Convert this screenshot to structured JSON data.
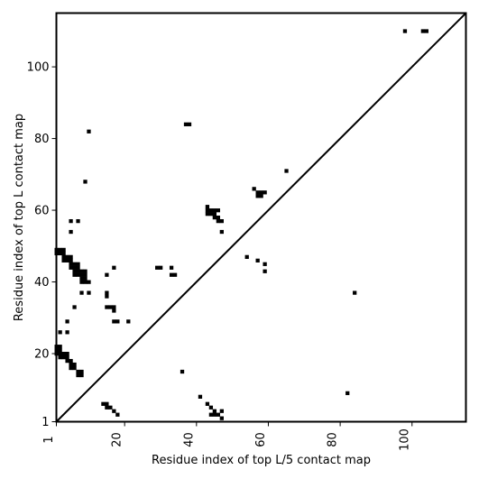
{
  "chart_data": {
    "type": "heatmap",
    "xlabel": "Residue index of top L/5 contact map",
    "ylabel": "Residue index of top L contact map",
    "xlim": [
      1,
      115
    ],
    "ylim": [
      1,
      115
    ],
    "xticks": [
      1,
      20,
      40,
      60,
      80,
      100
    ],
    "yticks": [
      1,
      20,
      40,
      60,
      80,
      100
    ],
    "diagonal": true,
    "colors": {
      "cell": "#000000",
      "background": "#ffffff",
      "frame": "#000000"
    },
    "cells_below_diagonal": [
      [
        1,
        20
      ],
      [
        1,
        21
      ],
      [
        1,
        22
      ],
      [
        1,
        48
      ],
      [
        1,
        49
      ],
      [
        2,
        19
      ],
      [
        2,
        20
      ],
      [
        2,
        21
      ],
      [
        2,
        22
      ],
      [
        2,
        26
      ],
      [
        2,
        48
      ],
      [
        2,
        49
      ],
      [
        3,
        19
      ],
      [
        3,
        20
      ],
      [
        3,
        46
      ],
      [
        3,
        47
      ],
      [
        3,
        48
      ],
      [
        3,
        49
      ],
      [
        4,
        18
      ],
      [
        4,
        19
      ],
      [
        4,
        20
      ],
      [
        4,
        26
      ],
      [
        4,
        29
      ],
      [
        4,
        46
      ],
      [
        4,
        47
      ],
      [
        5,
        16
      ],
      [
        5,
        17
      ],
      [
        5,
        18
      ],
      [
        5,
        44
      ],
      [
        5,
        45
      ],
      [
        5,
        46
      ],
      [
        5,
        47
      ],
      [
        5,
        54
      ],
      [
        5,
        57
      ],
      [
        6,
        16
      ],
      [
        6,
        17
      ],
      [
        6,
        33
      ],
      [
        6,
        42
      ],
      [
        6,
        43
      ],
      [
        6,
        44
      ],
      [
        6,
        45
      ],
      [
        7,
        14
      ],
      [
        7,
        15
      ],
      [
        7,
        42
      ],
      [
        7,
        43
      ],
      [
        7,
        44
      ],
      [
        7,
        45
      ],
      [
        7,
        57
      ],
      [
        8,
        14
      ],
      [
        8,
        15
      ],
      [
        8,
        37
      ],
      [
        8,
        40
      ],
      [
        8,
        41
      ],
      [
        8,
        42
      ],
      [
        8,
        43
      ],
      [
        9,
        40
      ],
      [
        9,
        41
      ],
      [
        9,
        42
      ],
      [
        9,
        43
      ],
      [
        9,
        68
      ],
      [
        10,
        37
      ],
      [
        10,
        40
      ],
      [
        10,
        82
      ],
      [
        14,
        6
      ],
      [
        15,
        5
      ],
      [
        15,
        6
      ],
      [
        15,
        33
      ],
      [
        15,
        36
      ],
      [
        15,
        37
      ],
      [
        15,
        42
      ],
      [
        16,
        5
      ],
      [
        16,
        33
      ],
      [
        17,
        4
      ],
      [
        17,
        29
      ],
      [
        17,
        32
      ],
      [
        17,
        33
      ],
      [
        17,
        44
      ],
      [
        18,
        3
      ],
      [
        18,
        29
      ],
      [
        21,
        29
      ],
      [
        29,
        44
      ],
      [
        30,
        44
      ],
      [
        33,
        42
      ],
      [
        33,
        44
      ],
      [
        34,
        42
      ],
      [
        36,
        15
      ],
      [
        37,
        84
      ],
      [
        38,
        84
      ],
      [
        41,
        8
      ],
      [
        43,
        6
      ],
      [
        43,
        59
      ],
      [
        43,
        60
      ],
      [
        43,
        61
      ],
      [
        44,
        3
      ],
      [
        44,
        5
      ],
      [
        44,
        59
      ],
      [
        44,
        60
      ],
      [
        45,
        3
      ],
      [
        45,
        4
      ],
      [
        45,
        58
      ],
      [
        45,
        59
      ],
      [
        45,
        60
      ],
      [
        46,
        3
      ],
      [
        46,
        57
      ],
      [
        46,
        58
      ],
      [
        46,
        60
      ],
      [
        47,
        2
      ],
      [
        47,
        4
      ],
      [
        47,
        54
      ],
      [
        47,
        57
      ],
      [
        54,
        47
      ],
      [
        56,
        66
      ],
      [
        57,
        46
      ],
      [
        57,
        64
      ],
      [
        57,
        65
      ],
      [
        58,
        64
      ],
      [
        58,
        65
      ],
      [
        59,
        43
      ],
      [
        59,
        45
      ],
      [
        59,
        65
      ],
      [
        65,
        71
      ],
      [
        82,
        9
      ],
      [
        84,
        37
      ],
      [
        98,
        110
      ],
      [
        103,
        110
      ],
      [
        104,
        110
      ]
    ]
  }
}
